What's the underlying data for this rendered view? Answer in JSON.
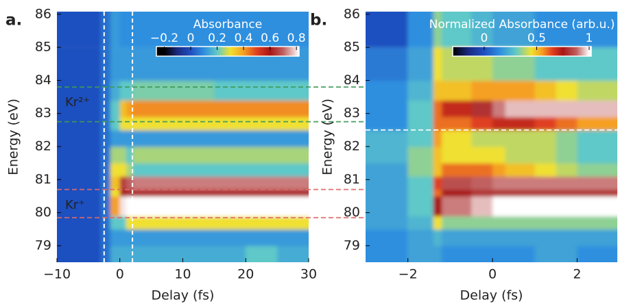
{
  "chart_data": [
    {
      "type": "heatmap",
      "panel_label": "a.",
      "xlabel": "Delay (fs)",
      "ylabel": "Energy (eV)",
      "xlim": [
        -10,
        30
      ],
      "ylim": [
        78.5,
        86.08
      ],
      "xticks": [
        {
          "value": -10,
          "label": "−10"
        },
        0,
        10,
        20,
        30
      ],
      "yticks": [
        79,
        80,
        81,
        82,
        83,
        84,
        85,
        86
      ],
      "x_edges": [
        -10,
        -3,
        -1.5,
        0,
        1,
        2,
        5,
        10,
        15,
        20,
        25,
        30
      ],
      "y_edges": [
        78.5,
        79.0,
        79.5,
        79.9,
        80.5,
        80.7,
        81.1,
        81.5,
        82.0,
        82.5,
        82.9,
        83.4,
        84.0,
        85.0,
        86.08
      ],
      "z": [
        [
          0.0,
          0.05,
          0.15,
          0.15,
          0.15,
          0.15,
          0.15,
          0.15,
          0.15,
          0.2,
          0.15
        ],
        [
          0.0,
          0.05,
          0.12,
          0.12,
          0.12,
          0.12,
          0.12,
          0.12,
          0.12,
          0.12,
          0.12
        ],
        [
          0.0,
          0.05,
          0.2,
          0.2,
          0.3,
          0.3,
          0.3,
          0.3,
          0.3,
          0.3,
          0.3
        ],
        [
          0.0,
          0.05,
          0.4,
          0.8,
          0.9,
          0.9,
          0.9,
          0.9,
          0.9,
          0.9,
          0.9
        ],
        [
          0.0,
          0.05,
          0.3,
          0.6,
          0.62,
          0.62,
          0.62,
          0.62,
          0.62,
          0.62,
          0.62
        ],
        [
          0.0,
          0.05,
          0.35,
          0.65,
          0.7,
          0.72,
          0.72,
          0.72,
          0.72,
          0.72,
          0.72
        ],
        [
          0.0,
          0.05,
          0.3,
          0.3,
          0.25,
          0.2,
          0.2,
          0.2,
          0.2,
          0.2,
          0.2
        ],
        [
          0.0,
          0.05,
          0.25,
          0.25,
          0.2,
          0.25,
          0.25,
          0.25,
          0.25,
          0.25,
          0.25
        ],
        [
          0.0,
          0.05,
          0.12,
          0.12,
          0.12,
          0.12,
          0.12,
          0.12,
          0.12,
          0.12,
          0.12
        ],
        [
          0.0,
          0.05,
          0.2,
          0.3,
          0.3,
          0.3,
          0.3,
          0.3,
          0.3,
          0.3,
          0.3
        ],
        [
          0.0,
          0.05,
          0.2,
          0.35,
          0.4,
          0.42,
          0.42,
          0.42,
          0.42,
          0.42,
          0.42
        ],
        [
          0.0,
          0.05,
          0.15,
          0.2,
          0.2,
          0.22,
          0.22,
          0.22,
          0.2,
          0.2,
          0.2
        ],
        [
          0.0,
          0.05,
          0.12,
          0.12,
          0.12,
          0.12,
          0.12,
          0.12,
          0.12,
          0.12,
          0.12
        ],
        [
          0.0,
          0.05,
          0.12,
          0.1,
          0.1,
          0.1,
          0.1,
          0.1,
          0.1,
          0.1,
          0.1
        ]
      ],
      "colorbar": {
        "title": "Absorbance",
        "lim": [
          -0.26,
          0.82
        ],
        "ticks": [
          {
            "value": -0.2,
            "label": "−0.2"
          },
          0,
          0.2,
          0.4,
          0.6,
          0.8
        ],
        "colormap": [
          [
            -0.2,
            "#000000"
          ],
          [
            -0.1,
            "#1a2a80"
          ],
          [
            0,
            "#1f4fbf"
          ],
          [
            0.1,
            "#2f8fdf"
          ],
          [
            0.2,
            "#5fc8c8"
          ],
          [
            0.3,
            "#f0e030"
          ],
          [
            0.4,
            "#f5a020"
          ],
          [
            0.5,
            "#e04020"
          ],
          [
            0.6,
            "#a81515"
          ],
          [
            0.7,
            "#c06060"
          ],
          [
            0.82,
            "#ffffff"
          ]
        ]
      },
      "vlines": [
        {
          "value": -2.5,
          "color": "#ffffff"
        },
        {
          "value": 2,
          "color": "#ffffff"
        }
      ],
      "hlines": [
        {
          "value": 83.8,
          "color": "#3f9a5a"
        },
        {
          "value": 82.75,
          "color": "#3f9a5a"
        },
        {
          "value": 80.7,
          "color": "#e06a6a"
        },
        {
          "value": 79.85,
          "color": "#e06a6a"
        }
      ],
      "annotations": [
        {
          "text": "Kr²⁺",
          "color": "#2e8b3e"
        },
        {
          "text": "Kr⁺",
          "color": "#e03030"
        }
      ]
    },
    {
      "type": "heatmap",
      "panel_label": "b.",
      "xlabel": "Delay (fs)",
      "ylabel": "Energy (eV)",
      "xlim": [
        -3,
        2.95
      ],
      "ylim": [
        78.5,
        86.08
      ],
      "xticks": [
        {
          "value": -2,
          "label": "−2"
        },
        0,
        2
      ],
      "yticks": [
        79,
        80,
        81,
        82,
        83,
        84,
        85,
        86
      ],
      "x_edges": [
        -3,
        -2,
        -1.4,
        -1.2,
        -0.5,
        0,
        0.3,
        1,
        1.5,
        2,
        2.95
      ],
      "y_edges": [
        78.5,
        79.0,
        79.5,
        79.9,
        80.5,
        80.7,
        81.1,
        81.5,
        82.0,
        82.5,
        82.9,
        83.4,
        84.0,
        85.0,
        86.08
      ],
      "z": [
        [
          0.15,
          0.2,
          0.2,
          0.15,
          0.15,
          0.15,
          0.15,
          0.2,
          0.2,
          0.15
        ],
        [
          0.15,
          0.2,
          0.25,
          0.2,
          0.2,
          0.2,
          0.2,
          0.2,
          0.2,
          0.2
        ],
        [
          0.2,
          0.25,
          0.45,
          0.35,
          0.35,
          0.35,
          0.35,
          0.35,
          0.35,
          0.35
        ],
        [
          0.2,
          0.3,
          0.75,
          0.9,
          0.95,
          1,
          1,
          1,
          1,
          1
        ],
        [
          0.2,
          0.3,
          0.6,
          0.75,
          0.8,
          0.8,
          0.8,
          0.8,
          0.8,
          0.8
        ],
        [
          0.2,
          0.3,
          0.65,
          0.85,
          0.88,
          0.9,
          0.9,
          0.9,
          0.9,
          0.9
        ],
        [
          0.2,
          0.35,
          0.5,
          0.6,
          0.6,
          0.55,
          0.5,
          0.45,
          0.4,
          0.35
        ],
        [
          0.25,
          0.35,
          0.5,
          0.45,
          0.45,
          0.45,
          0.4,
          0.4,
          0.35,
          0.3
        ],
        [
          0.25,
          0.3,
          0.55,
          0.45,
          0.4,
          0.4,
          0.4,
          0.4,
          0.35,
          0.3
        ],
        [
          0.15,
          0.3,
          0.6,
          0.6,
          0.65,
          0.7,
          0.7,
          0.65,
          0.6,
          0.55
        ],
        [
          0.15,
          0.3,
          0.6,
          0.7,
          0.8,
          0.9,
          0.95,
          0.95,
          0.95,
          0.95
        ],
        [
          0.15,
          0.25,
          0.5,
          0.5,
          0.55,
          0.55,
          0.55,
          0.5,
          0.45,
          0.4
        ],
        [
          0.1,
          0.2,
          0.45,
          0.4,
          0.4,
          0.35,
          0.35,
          0.3,
          0.3,
          0.3
        ],
        [
          0.0,
          0.15,
          0.35,
          0.3,
          0.25,
          0.2,
          0.2,
          0.15,
          0.15,
          0.15
        ]
      ],
      "colorbar": {
        "title": "Normalized Absorbance (arb.u.)",
        "lim": [
          -0.3,
          1.02
        ],
        "ticks": [
          0,
          0.5,
          1
        ],
        "colormap": [
          [
            -0.3,
            "#000000"
          ],
          [
            -0.15,
            "#1a2a80"
          ],
          [
            0,
            "#1f4fbf"
          ],
          [
            0.15,
            "#2f8fdf"
          ],
          [
            0.3,
            "#5fc8c8"
          ],
          [
            0.45,
            "#f0e030"
          ],
          [
            0.55,
            "#f5a020"
          ],
          [
            0.65,
            "#e04020"
          ],
          [
            0.75,
            "#a81515"
          ],
          [
            0.88,
            "#c06060"
          ],
          [
            1.0,
            "#ffffff"
          ]
        ]
      },
      "vlines": [],
      "hlines": [
        {
          "value": 82.5,
          "color": "#ffffff"
        }
      ],
      "annotations": []
    }
  ]
}
